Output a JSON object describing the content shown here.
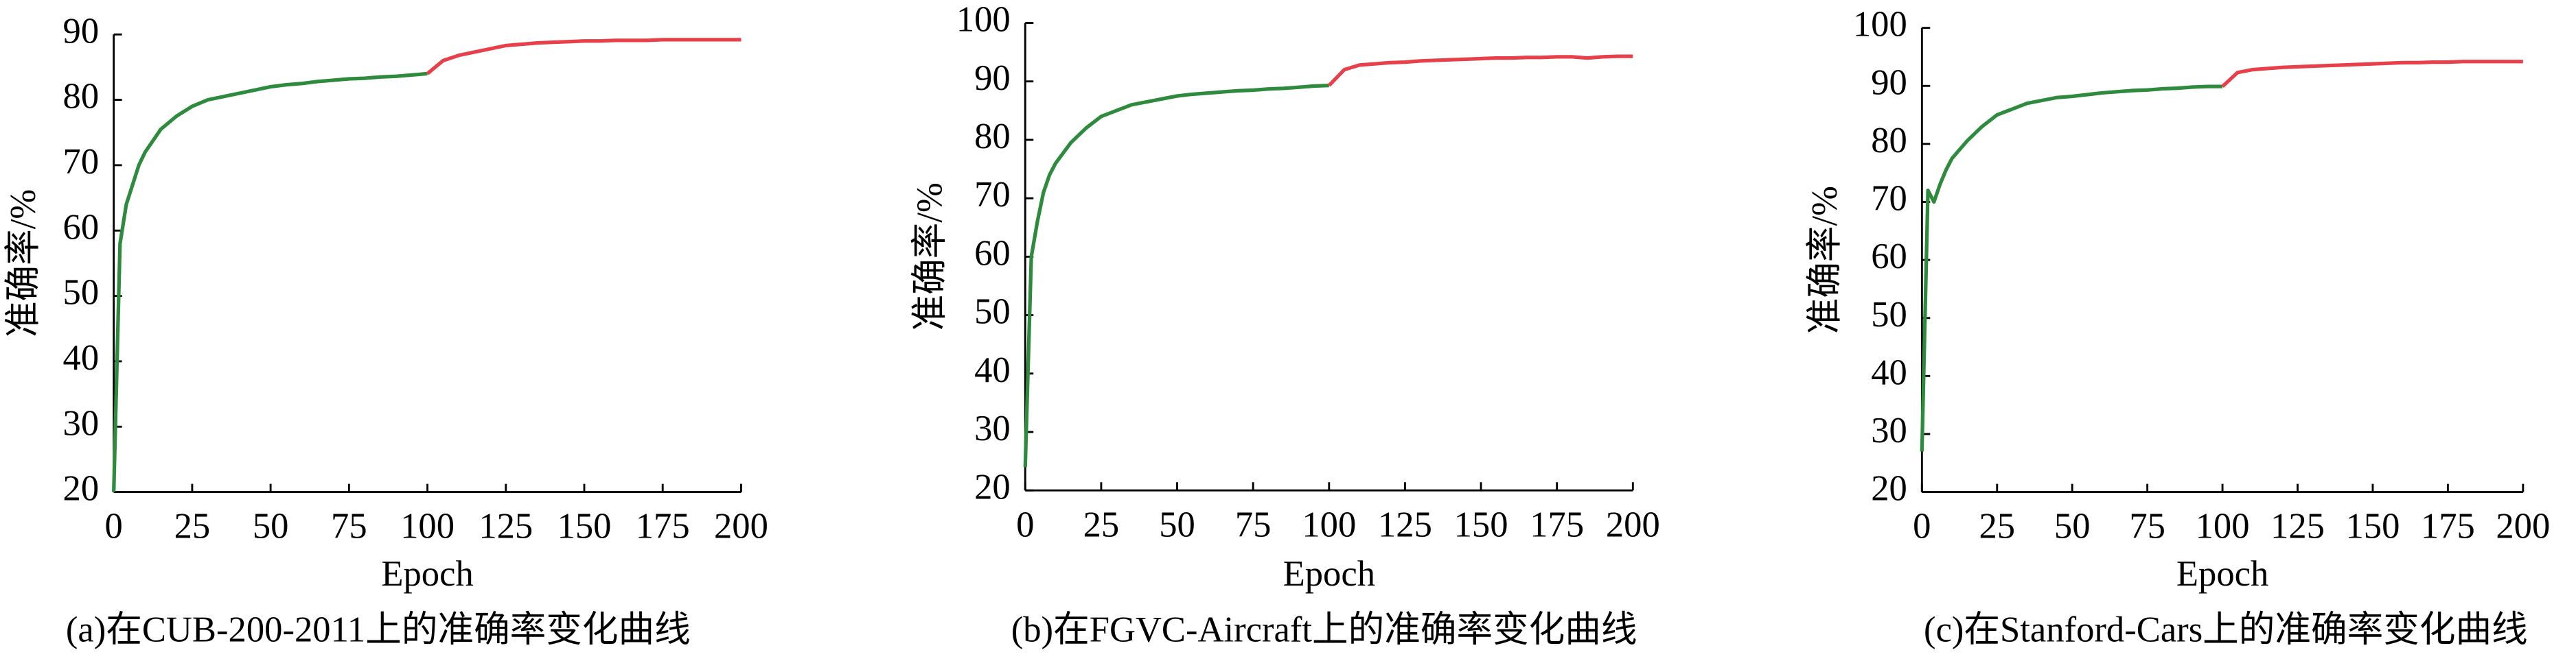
{
  "chart_data": [
    {
      "type": "line",
      "caption": "(a)在CUB-200-2011上的准确率变化曲线",
      "x_label": "Epoch",
      "y_label": "准确率/%",
      "x": [
        0,
        2,
        4,
        6,
        8,
        10,
        15,
        20,
        25,
        30,
        35,
        40,
        45,
        50,
        55,
        60,
        65,
        70,
        75,
        80,
        85,
        90,
        95,
        100,
        105,
        110,
        115,
        120,
        125,
        130,
        135,
        140,
        145,
        150,
        155,
        160,
        165,
        170,
        175,
        180,
        185,
        190,
        195,
        200
      ],
      "series": [
        {
          "color": "#2e8b3e",
          "values": [
            20,
            58,
            64,
            67,
            70,
            72,
            75.5,
            77.5,
            79,
            80,
            80.5,
            81,
            81.5,
            82,
            82.3,
            82.5,
            82.8,
            83,
            83.2,
            83.3,
            83.5,
            83.6,
            83.8,
            84,
            null,
            null,
            null,
            null,
            null,
            null,
            null,
            null,
            null,
            null,
            null,
            null,
            null,
            null,
            null,
            null,
            null,
            null,
            null,
            null
          ]
        },
        {
          "color": "#e8404a",
          "values": [
            null,
            null,
            null,
            null,
            null,
            null,
            null,
            null,
            null,
            null,
            null,
            null,
            null,
            null,
            null,
            null,
            null,
            null,
            null,
            null,
            null,
            null,
            null,
            84,
            86,
            86.8,
            87.3,
            87.8,
            88.3,
            88.5,
            88.7,
            88.8,
            88.9,
            89,
            89,
            89.1,
            89.1,
            89.1,
            89.2,
            89.2,
            89.2,
            89.2,
            89.2,
            89.2
          ]
        }
      ],
      "xlim": [
        0,
        200
      ],
      "xticks": [
        0,
        25,
        50,
        75,
        100,
        125,
        150,
        175,
        200
      ],
      "ylim": [
        20,
        90
      ],
      "yticks": [
        20,
        30,
        40,
        50,
        60,
        70,
        80,
        90
      ]
    },
    {
      "type": "line",
      "caption": "(b)在FGVC-Aircraft上的准确率变化曲线",
      "x_label": "Epoch",
      "y_label": "准确率/%",
      "x": [
        0,
        2,
        4,
        6,
        8,
        10,
        15,
        20,
        25,
        30,
        35,
        40,
        45,
        50,
        55,
        60,
        65,
        70,
        75,
        80,
        85,
        90,
        95,
        100,
        105,
        110,
        115,
        120,
        125,
        130,
        135,
        140,
        145,
        150,
        155,
        160,
        165,
        170,
        175,
        180,
        185,
        190,
        195,
        200
      ],
      "series": [
        {
          "color": "#2e8b3e",
          "values": [
            24,
            60,
            66,
            71,
            74,
            76,
            79.5,
            82,
            84,
            85,
            86,
            86.5,
            87,
            87.5,
            87.8,
            88,
            88.2,
            88.4,
            88.5,
            88.7,
            88.8,
            89,
            89.2,
            89.3,
            null,
            null,
            null,
            null,
            null,
            null,
            null,
            null,
            null,
            null,
            null,
            null,
            null,
            null,
            null,
            null,
            null,
            null,
            null,
            null
          ]
        },
        {
          "color": "#e8404a",
          "values": [
            null,
            null,
            null,
            null,
            null,
            null,
            null,
            null,
            null,
            null,
            null,
            null,
            null,
            null,
            null,
            null,
            null,
            null,
            null,
            null,
            null,
            null,
            null,
            89.3,
            92,
            92.8,
            93,
            93.2,
            93.3,
            93.5,
            93.6,
            93.7,
            93.8,
            93.9,
            94,
            94,
            94.1,
            94.1,
            94.2,
            94.2,
            94,
            94.2,
            94.3,
            94.3
          ]
        }
      ],
      "xlim": [
        0,
        200
      ],
      "xticks": [
        0,
        25,
        50,
        75,
        100,
        125,
        150,
        175,
        200
      ],
      "ylim": [
        20,
        100
      ],
      "yticks": [
        20,
        30,
        40,
        50,
        60,
        70,
        80,
        90,
        100
      ]
    },
    {
      "type": "line",
      "caption": "(c)在Stanford-Cars上的准确率变化曲线",
      "x_label": "Epoch",
      "y_label": "准确率/%",
      "x": [
        0,
        2,
        4,
        6,
        8,
        10,
        15,
        20,
        25,
        30,
        35,
        40,
        45,
        50,
        55,
        60,
        65,
        70,
        75,
        80,
        85,
        90,
        95,
        100,
        105,
        110,
        115,
        120,
        125,
        130,
        135,
        140,
        145,
        150,
        155,
        160,
        165,
        170,
        175,
        180,
        185,
        190,
        195,
        200
      ],
      "series": [
        {
          "color": "#2e8b3e",
          "values": [
            27,
            72,
            70,
            73,
            75.5,
            77.5,
            80.5,
            83,
            85,
            86,
            87,
            87.5,
            88,
            88.2,
            88.5,
            88.8,
            89,
            89.2,
            89.3,
            89.5,
            89.6,
            89.8,
            89.9,
            89.9,
            null,
            null,
            null,
            null,
            null,
            null,
            null,
            null,
            null,
            null,
            null,
            null,
            null,
            null,
            null,
            null,
            null,
            null,
            null,
            null
          ]
        },
        {
          "color": "#e8404a",
          "values": [
            null,
            null,
            null,
            null,
            null,
            null,
            null,
            null,
            null,
            null,
            null,
            null,
            null,
            null,
            null,
            null,
            null,
            null,
            null,
            null,
            null,
            null,
            null,
            89.9,
            92.3,
            92.8,
            93,
            93.2,
            93.3,
            93.4,
            93.5,
            93.6,
            93.7,
            93.8,
            93.9,
            94,
            94,
            94.1,
            94.1,
            94.2,
            94.2,
            94.2,
            94.2,
            94.2
          ]
        }
      ],
      "xlim": [
        0,
        200
      ],
      "xticks": [
        0,
        25,
        50,
        75,
        100,
        125,
        150,
        175,
        200
      ],
      "ylim": [
        20,
        100
      ],
      "yticks": [
        20,
        30,
        40,
        50,
        60,
        70,
        80,
        90,
        100
      ]
    }
  ]
}
